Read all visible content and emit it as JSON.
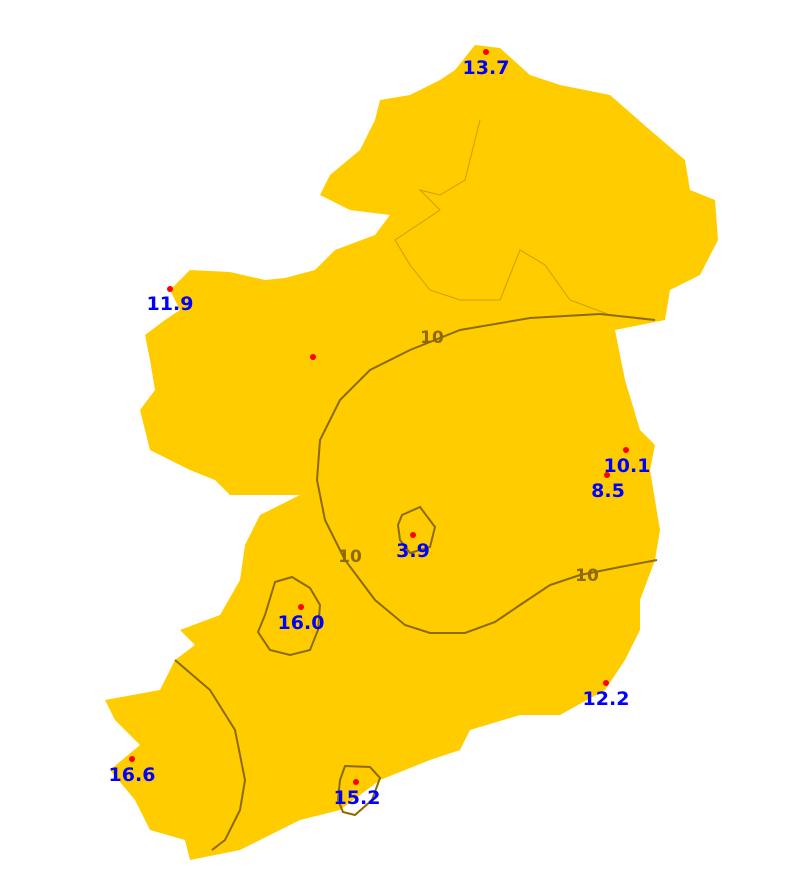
{
  "colors": {
    "land": "#ffcc00",
    "contour": "#8c6a00",
    "border": "#c9a000",
    "station": "#ff0000",
    "value_text": "#0000ff",
    "background": "#ffffff"
  },
  "contour_labels": [
    "10",
    "10",
    "10"
  ],
  "stations": [
    {
      "value": "13.7"
    },
    {
      "value": "11.9"
    },
    {
      "value": ""
    },
    {
      "value": "10.1"
    },
    {
      "value": "8.5"
    },
    {
      "value": "3.9"
    },
    {
      "value": "16.0"
    },
    {
      "value": "12.2"
    },
    {
      "value": "16.6"
    },
    {
      "value": "15.2"
    }
  ]
}
